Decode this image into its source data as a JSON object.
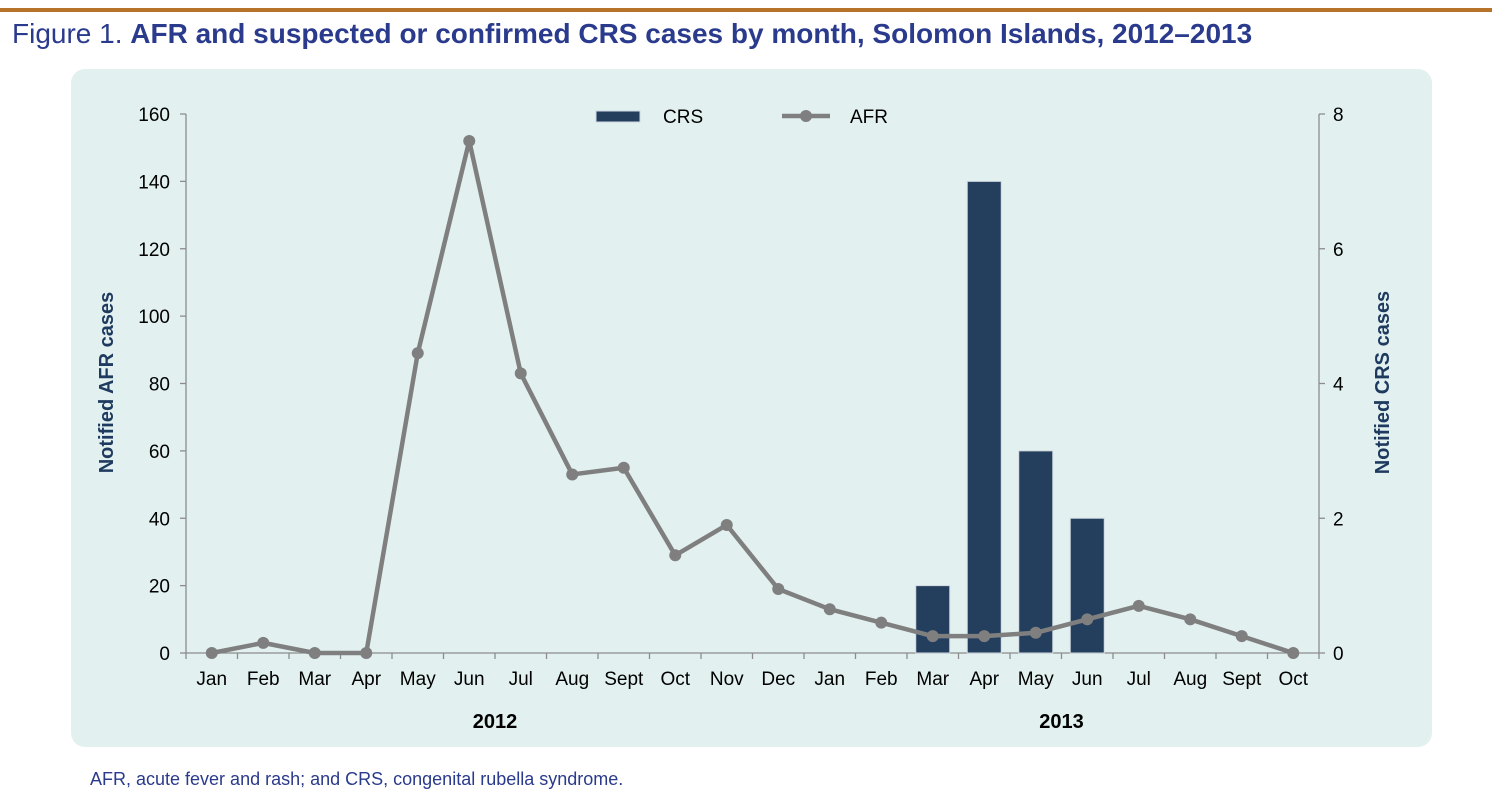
{
  "figure": {
    "label": "Figure 1.",
    "title": "AFR and suspected or confirmed CRS cases by month, Solomon Islands, 2012–2013",
    "footnote": "AFR, acute fever and rash; and CRS, congenital rubella syndrome."
  },
  "colors": {
    "accent_bar": "#B8732A",
    "title": "#2A3A8C",
    "panel": "#E2F1F0",
    "crs_bar": "#243F5E",
    "afr_line": "#7F7F7F"
  },
  "chart_data": {
    "type": "bar+line",
    "categories": [
      "Jan",
      "Feb",
      "Mar",
      "Apr",
      "May",
      "Jun",
      "Jul",
      "Aug",
      "Sept",
      "Oct",
      "Nov",
      "Dec",
      "Jan",
      "Feb",
      "Mar",
      "Apr",
      "May",
      "Jun",
      "Jul",
      "Aug",
      "Sept",
      "Oct"
    ],
    "years": [
      {
        "label": "2012",
        "first_index": 0,
        "last_index": 11
      },
      {
        "label": "2013",
        "first_index": 12,
        "last_index": 21
      }
    ],
    "series": [
      {
        "name": "CRS",
        "type": "bar",
        "axis": "right",
        "values": [
          0,
          0,
          0,
          0,
          0,
          0,
          0,
          0,
          0,
          0,
          0,
          0,
          0,
          0,
          1,
          7,
          3,
          2,
          0,
          0,
          0,
          0
        ]
      },
      {
        "name": "AFR",
        "type": "line",
        "axis": "left",
        "values": [
          0,
          3,
          0,
          0,
          89,
          152,
          83,
          53,
          55,
          29,
          38,
          19,
          13,
          9,
          5,
          5,
          6,
          10,
          14,
          10,
          5,
          0
        ]
      }
    ],
    "left_axis": {
      "label": "Notified AFR cases",
      "min": 0,
      "max": 160,
      "ticks": [
        0,
        20,
        40,
        60,
        80,
        100,
        120,
        140,
        160
      ]
    },
    "right_axis": {
      "label": "Notified CRS cases",
      "min": 0,
      "max": 8,
      "ticks": [
        0,
        2,
        4,
        6,
        8
      ]
    },
    "legend": {
      "position": "top-center",
      "items": [
        "CRS",
        "AFR"
      ]
    },
    "grid": false
  }
}
